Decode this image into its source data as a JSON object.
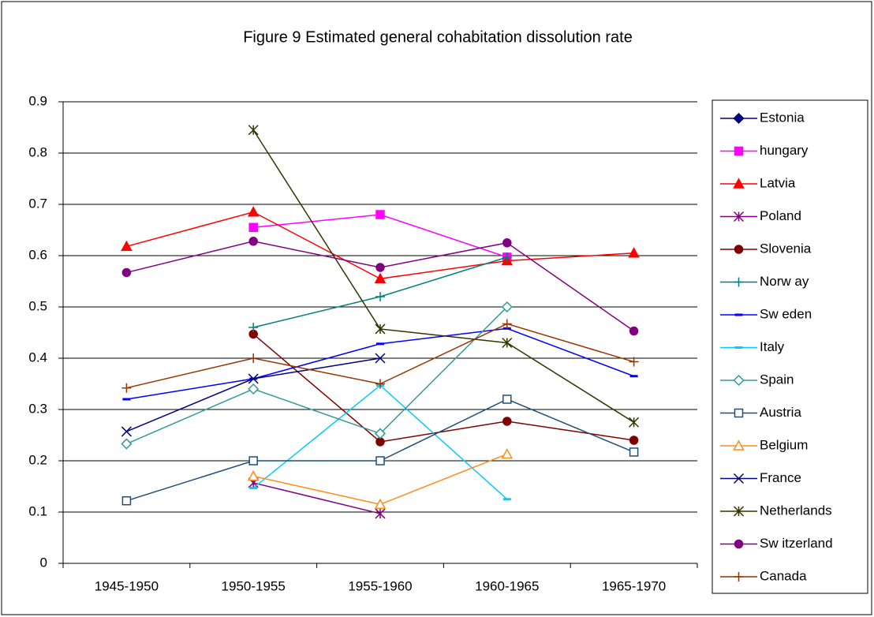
{
  "chart_data": {
    "type": "line",
    "title": "Figure 9 Estimated general cohabitation dissolution rate",
    "categories": [
      "1945-1950",
      "1950-1955",
      "1955-1960",
      "1960-1965",
      "1965-1970"
    ],
    "ylim": [
      0,
      0.9
    ],
    "yticks": [
      0,
      0.1,
      0.2,
      0.3,
      0.4,
      0.5,
      0.6,
      0.7,
      0.8,
      0.9
    ],
    "grid": true,
    "legend": "right",
    "series": [
      {
        "name": "Estonia",
        "color": "#000080",
        "marker": "diamond",
        "values": [
          null,
          null,
          null,
          null,
          null
        ]
      },
      {
        "name": "hungary",
        "color": "#ff00ff",
        "marker": "square",
        "values": [
          null,
          0.655,
          0.68,
          0.597,
          null
        ]
      },
      {
        "name": "Latvia",
        "color": "#ff0000",
        "marker": "triangle",
        "values": [
          0.618,
          0.685,
          0.555,
          0.59,
          0.605
        ]
      },
      {
        "name": "Poland",
        "color": "#800080",
        "marker": "star",
        "values": [
          null,
          0.157,
          0.097,
          null,
          null
        ]
      },
      {
        "name": "Slovenia",
        "color": "#800000",
        "marker": "circle",
        "values": [
          null,
          0.447,
          0.237,
          0.277,
          0.24
        ]
      },
      {
        "name": "Norw ay",
        "color": "#008080",
        "marker": "plus",
        "values": [
          null,
          0.46,
          0.52,
          0.597,
          null
        ]
      },
      {
        "name": "Sw eden",
        "color": "#0000ff",
        "marker": "dash",
        "values": [
          0.32,
          0.36,
          0.428,
          0.458,
          0.365
        ]
      },
      {
        "name": "Italy",
        "color": "#00ccff",
        "marker": "dash",
        "values": [
          null,
          0.147,
          0.347,
          0.125,
          null
        ]
      },
      {
        "name": "Spain",
        "color": "#339999",
        "marker": "diamond-open",
        "values": [
          0.233,
          0.34,
          0.253,
          0.5,
          null
        ]
      },
      {
        "name": "Austria",
        "color": "#1f4e79",
        "marker": "square-open",
        "values": [
          0.122,
          0.2,
          0.2,
          0.32,
          0.217
        ]
      },
      {
        "name": "Belgium",
        "color": "#ff8c1a",
        "marker": "triangle-open",
        "values": [
          null,
          0.17,
          0.115,
          0.213,
          null
        ]
      },
      {
        "name": "France",
        "color": "#000080",
        "marker": "x",
        "values": [
          0.257,
          0.36,
          0.4,
          null,
          null
        ]
      },
      {
        "name": "Netherlands",
        "color": "#333300",
        "marker": "star",
        "values": [
          null,
          0.845,
          0.457,
          0.43,
          0.275
        ]
      },
      {
        "name": "Sw itzerland",
        "color": "#800080",
        "marker": "circle",
        "values": [
          0.567,
          0.628,
          0.577,
          0.625,
          0.453
        ]
      },
      {
        "name": "Canada",
        "color": "#993300",
        "marker": "plus",
        "values": [
          0.342,
          0.4,
          0.35,
          0.467,
          0.393
        ]
      }
    ]
  }
}
